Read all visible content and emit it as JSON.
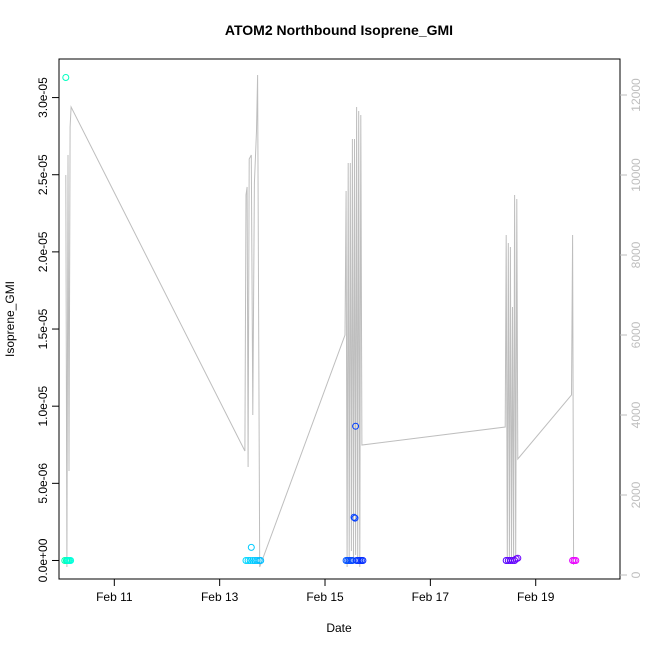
{
  "chart_data": {
    "type": "scatter",
    "title": "ATOM2 Northbound Isoprene_GMI",
    "xlabel": "Date",
    "ylabel": "Isoprene_GMI",
    "x_unit": "day-of-February",
    "xlim": [
      9.95,
      20.6
    ],
    "ylim": [
      -1.2e-06,
      3.25e-05
    ],
    "y2lim": [
      -100,
      12900
    ],
    "x_ticks": [
      {
        "value": 11,
        "label": "Feb 11"
      },
      {
        "value": 13,
        "label": "Feb 13"
      },
      {
        "value": 15,
        "label": "Feb 15"
      },
      {
        "value": 17,
        "label": "Feb 17"
      },
      {
        "value": 19,
        "label": "Feb 19"
      }
    ],
    "y_ticks": [
      {
        "value": 0,
        "label": "0.0e+00"
      },
      {
        "value": 5e-06,
        "label": "5.0e-06"
      },
      {
        "value": 1e-05,
        "label": "1.0e-05"
      },
      {
        "value": 1.5e-05,
        "label": "1.5e-05"
      },
      {
        "value": 2e-05,
        "label": "2.0e-05"
      },
      {
        "value": 2.5e-05,
        "label": "2.5e-05"
      },
      {
        "value": 3e-05,
        "label": "3.0e-05"
      }
    ],
    "y2_ticks": [
      {
        "value": 0,
        "label": "0"
      },
      {
        "value": 2000,
        "label": "2000"
      },
      {
        "value": 4000,
        "label": "4000"
      },
      {
        "value": 6000,
        "label": "6000"
      },
      {
        "value": 8000,
        "label": "8000"
      },
      {
        "value": 10000,
        "label": "10000"
      },
      {
        "value": 12000,
        "label": "12000"
      }
    ],
    "grid": false,
    "altitude_line_color": "#bebebe",
    "altitude_series": [
      {
        "x": 10.08,
        "y": 10000
      },
      {
        "x": 10.1,
        "y": 200
      },
      {
        "x": 10.12,
        "y": 10500
      },
      {
        "x": 10.14,
        "y": 2600
      },
      {
        "x": 10.16,
        "y": 11200
      },
      {
        "x": 10.18,
        "y": 11700
      },
      {
        "x": 13.48,
        "y": 3100
      },
      {
        "x": 13.5,
        "y": 9500
      },
      {
        "x": 13.52,
        "y": 9700
      },
      {
        "x": 13.54,
        "y": 2700
      },
      {
        "x": 13.56,
        "y": 10400
      },
      {
        "x": 13.6,
        "y": 10500
      },
      {
        "x": 13.63,
        "y": 4000
      },
      {
        "x": 13.66,
        "y": 9800
      },
      {
        "x": 13.7,
        "y": 11100
      },
      {
        "x": 13.72,
        "y": 12500
      },
      {
        "x": 13.76,
        "y": 200
      },
      {
        "x": 15.38,
        "y": 6000
      },
      {
        "x": 15.4,
        "y": 9600
      },
      {
        "x": 15.42,
        "y": 200
      },
      {
        "x": 15.44,
        "y": 10300
      },
      {
        "x": 15.46,
        "y": 400
      },
      {
        "x": 15.48,
        "y": 10300
      },
      {
        "x": 15.5,
        "y": 600
      },
      {
        "x": 15.52,
        "y": 10900
      },
      {
        "x": 15.54,
        "y": 300
      },
      {
        "x": 15.56,
        "y": 10900
      },
      {
        "x": 15.58,
        "y": 500
      },
      {
        "x": 15.6,
        "y": 11700
      },
      {
        "x": 15.62,
        "y": 400
      },
      {
        "x": 15.64,
        "y": 11600
      },
      {
        "x": 15.66,
        "y": 200
      },
      {
        "x": 15.68,
        "y": 11500
      },
      {
        "x": 15.7,
        "y": 3250
      },
      {
        "x": 18.42,
        "y": 3700
      },
      {
        "x": 18.44,
        "y": 8500
      },
      {
        "x": 18.46,
        "y": 300
      },
      {
        "x": 18.48,
        "y": 8300
      },
      {
        "x": 18.5,
        "y": 400
      },
      {
        "x": 18.52,
        "y": 8200
      },
      {
        "x": 18.54,
        "y": 300
      },
      {
        "x": 18.56,
        "y": 6700
      },
      {
        "x": 18.58,
        "y": 300
      },
      {
        "x": 18.6,
        "y": 9500
      },
      {
        "x": 18.62,
        "y": 400
      },
      {
        "x": 18.64,
        "y": 9400
      },
      {
        "x": 18.66,
        "y": 2900
      },
      {
        "x": 19.68,
        "y": 4500
      },
      {
        "x": 19.7,
        "y": 8500
      },
      {
        "x": 19.72,
        "y": 250
      }
    ],
    "points": [
      {
        "x": 10.06,
        "y": 0,
        "color": "#00ffb0"
      },
      {
        "x": 10.08,
        "y": 3.13e-05,
        "color": "#00ffc0"
      },
      {
        "x": 10.09,
        "y": 0,
        "color": "#00ffb8"
      },
      {
        "x": 10.1,
        "y": 0,
        "color": "#00ffc0"
      },
      {
        "x": 10.11,
        "y": 0,
        "color": "#00ffc8"
      },
      {
        "x": 10.13,
        "y": 0,
        "color": "#00ffd0"
      },
      {
        "x": 10.15,
        "y": 0,
        "color": "#00ffd8"
      },
      {
        "x": 10.17,
        "y": 0,
        "color": "#00ffe0"
      },
      {
        "x": 13.5,
        "y": 0,
        "color": "#00d8ff"
      },
      {
        "x": 13.54,
        "y": 0,
        "color": "#00d4ff"
      },
      {
        "x": 13.58,
        "y": 0,
        "color": "#00d0ff"
      },
      {
        "x": 13.6,
        "y": 8.5e-07,
        "color": "#00ccff"
      },
      {
        "x": 13.63,
        "y": 0,
        "color": "#00ccff"
      },
      {
        "x": 13.67,
        "y": 0,
        "color": "#00c8ff"
      },
      {
        "x": 13.71,
        "y": 0,
        "color": "#00c4ff"
      },
      {
        "x": 13.75,
        "y": 0,
        "color": "#00c0ff"
      },
      {
        "x": 13.78,
        "y": 0,
        "color": "#00bcff"
      },
      {
        "x": 15.4,
        "y": 0,
        "color": "#0055ff"
      },
      {
        "x": 15.43,
        "y": 0,
        "color": "#0050ff"
      },
      {
        "x": 15.46,
        "y": 0,
        "color": "#004cff"
      },
      {
        "x": 15.49,
        "y": 0,
        "color": "#0048ff"
      },
      {
        "x": 15.52,
        "y": 0,
        "color": "#0044ff"
      },
      {
        "x": 15.55,
        "y": 2.8e-06,
        "color": "#0040ff"
      },
      {
        "x": 15.57,
        "y": 2.75e-06,
        "color": "#003cff"
      },
      {
        "x": 15.58,
        "y": 8.7e-06,
        "color": "#003cff"
      },
      {
        "x": 15.6,
        "y": 0,
        "color": "#0038ff"
      },
      {
        "x": 15.63,
        "y": 0,
        "color": "#0034ff"
      },
      {
        "x": 15.66,
        "y": 0,
        "color": "#0030ff"
      },
      {
        "x": 15.69,
        "y": 0,
        "color": "#002cff"
      },
      {
        "x": 15.72,
        "y": 0,
        "color": "#0028ff"
      },
      {
        "x": 18.44,
        "y": 0,
        "color": "#5500ff"
      },
      {
        "x": 18.48,
        "y": 0,
        "color": "#5800ff"
      },
      {
        "x": 18.52,
        "y": 0,
        "color": "#5c00ff"
      },
      {
        "x": 18.56,
        "y": 0,
        "color": "#6000ff"
      },
      {
        "x": 18.6,
        "y": 0,
        "color": "#6400ff"
      },
      {
        "x": 18.63,
        "y": 1e-07,
        "color": "#6800ff"
      },
      {
        "x": 18.66,
        "y": 1.5e-07,
        "color": "#6c00ff"
      },
      {
        "x": 19.7,
        "y": 0,
        "color": "#e000ff"
      },
      {
        "x": 19.73,
        "y": 0,
        "color": "#e800ff"
      },
      {
        "x": 19.76,
        "y": 0,
        "color": "#f000ff"
      }
    ]
  }
}
